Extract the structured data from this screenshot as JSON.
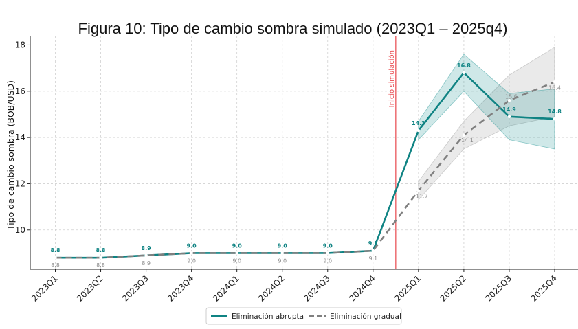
{
  "chart_data": {
    "type": "line",
    "title": "Figura 10: Tipo de cambio sombra simulado (2023Q1 – 2025q4)",
    "xlabel": "",
    "ylabel": "Tipo de cambio sombra (BOB/USD)",
    "categories": [
      "2023Q1",
      "2023Q2",
      "2023Q3",
      "2023Q4",
      "2024Q1",
      "2024Q2",
      "2024Q3",
      "2024Q4",
      "2025Q1",
      "2025Q2",
      "2025Q3",
      "2025Q4"
    ],
    "ylim": [
      8.3,
      18.4
    ],
    "yticks": [
      10,
      12,
      14,
      16,
      18
    ],
    "grid": true,
    "vline": {
      "category_index": 7.5,
      "label": "Inicio simulación",
      "color": "#e8484d"
    },
    "series": [
      {
        "name": "Eliminación abrupta",
        "color": "#0f8383",
        "style": "solid",
        "values": [
          8.8,
          8.8,
          8.9,
          9.0,
          9.0,
          9.0,
          9.0,
          9.1,
          14.3,
          16.8,
          14.9,
          14.8
        ],
        "labels": [
          "8.8",
          "8.8",
          "8.9",
          "9.0",
          "9.0",
          "9.0",
          "9.0",
          "9.1",
          "14.3",
          "16.8",
          "14.9",
          "14.8"
        ],
        "band": {
          "start_index": 8,
          "lower": [
            13.9,
            16.0,
            13.9,
            13.5
          ],
          "upper": [
            14.7,
            17.6,
            15.9,
            16.1
          ]
        }
      },
      {
        "name": "Eliminación gradual",
        "color": "#808080",
        "style": "dashed",
        "values": [
          8.8,
          8.8,
          8.9,
          9.0,
          9.0,
          9.0,
          9.0,
          9.1,
          11.7,
          14.1,
          15.6,
          16.4
        ],
        "labels": [
          "8.8",
          "8.8",
          "8.9",
          "9.0",
          "9.0",
          "9.0",
          "9.0",
          "9.1",
          "11.7",
          "14.1",
          "15.6",
          "16.4"
        ],
        "band": {
          "start_index": 8,
          "lower": [
            11.3,
            13.5,
            14.5,
            14.9
          ],
          "upper": [
            12.1,
            14.7,
            16.7,
            17.9
          ]
        }
      }
    ],
    "legend": {
      "placement": "bottom-center"
    }
  }
}
